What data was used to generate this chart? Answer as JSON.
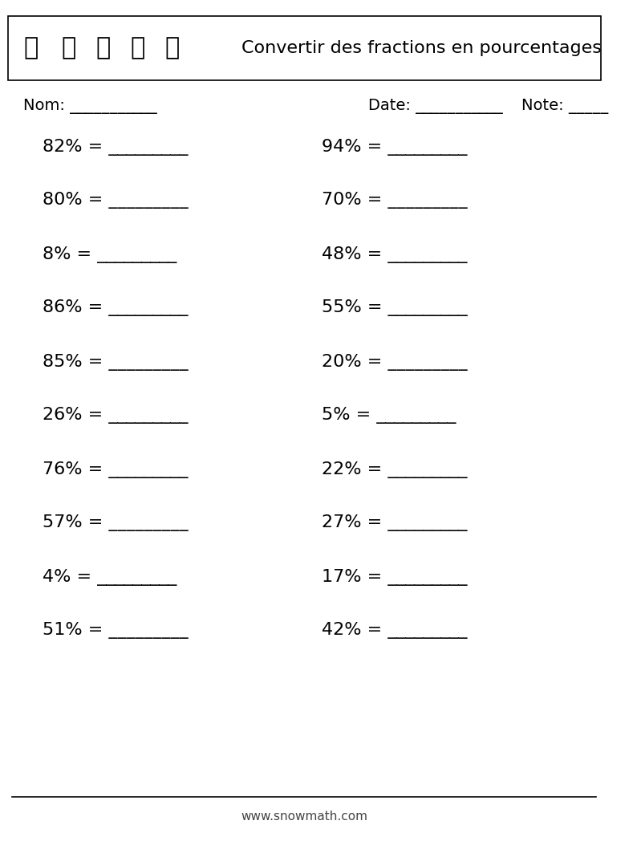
{
  "title": "Convertir des fractions en pourcentages",
  "header_box_color": "#000000",
  "background_color": "#ffffff",
  "text_color": "#000000",
  "website": "www.snowmath.com",
  "nom_label": "Nom: ___________",
  "date_label": "Date: ___________",
  "note_label": "Note: _____",
  "left_col_items": [
    "82% = _________",
    "80% = _________",
    "8% = _________",
    "86% = _________",
    "85% = _________",
    "26% = _________",
    "76% = _________",
    "57% = _________",
    "4% = _________",
    "51% = _________"
  ],
  "right_col_items": [
    "94% = _________",
    "70% = _________",
    "48% = _________",
    "55% = _________",
    "20% = _________",
    "5% = _________",
    "22% = _________",
    "27% = _________",
    "17% = _________",
    "42% = _________"
  ],
  "font_size_title": 16,
  "font_size_items": 16,
  "font_size_labels": 14,
  "font_size_website": 11
}
